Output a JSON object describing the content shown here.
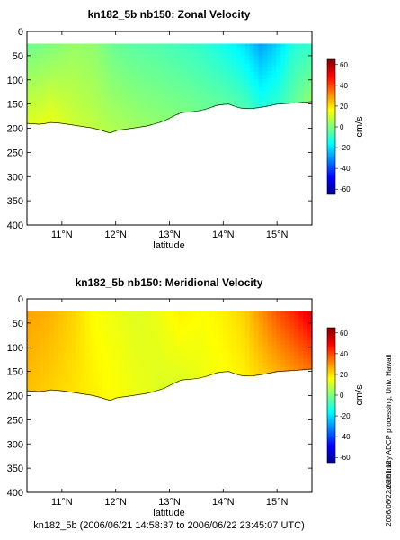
{
  "figure": {
    "side_note": "preliminary ADCP processing,  Univ. Hawaii",
    "timestamp": "2006/06/22 23:51:12",
    "footer": "kn182_5b (2006/06/21 14:58:37 to 2006/06/22 23:45:07 UTC)"
  },
  "chart_data": [
    {
      "type": "heatmap",
      "title": "kn182_5b nb150: Zonal Velocity",
      "xlabel": "latitude",
      "ylabel": "",
      "xlim": [
        10.35,
        15.65
      ],
      "ylim": [
        400,
        0
      ],
      "x_ticks": [
        11,
        12,
        13,
        14,
        15
      ],
      "x_tick_labels": [
        "11°N",
        "12°N",
        "13°N",
        "14°N",
        "15°N"
      ],
      "y_ticks": [
        0,
        50,
        100,
        150,
        200,
        250,
        300,
        350,
        400
      ],
      "colorbar": {
        "label": "cm/s",
        "range": [
          -65,
          65
        ],
        "ticks": [
          60,
          40,
          20,
          0,
          -20,
          -40,
          -60
        ],
        "colormap": "jet"
      },
      "data_top_depth": 25,
      "bottom_depth": {
        "latitude": [
          10.35,
          10.6,
          10.8,
          11.0,
          11.3,
          11.6,
          11.9,
          12.0,
          12.3,
          12.6,
          12.9,
          13.2,
          13.5,
          13.7,
          13.9,
          14.1,
          14.3,
          14.5,
          14.8,
          15.0,
          15.3,
          15.65
        ],
        "depth": [
          190,
          192,
          188,
          190,
          195,
          200,
          210,
          205,
          200,
          195,
          185,
          168,
          165,
          160,
          152,
          150,
          158,
          160,
          155,
          150,
          148,
          145
        ]
      },
      "velocity_profile": {
        "latitude": [
          10.4,
          10.8,
          11.2,
          11.6,
          12.0,
          12.4,
          12.8,
          13.2,
          13.6,
          14.0,
          14.4,
          14.7,
          15.0,
          15.3,
          15.6
        ],
        "upper_50m_cm_s": [
          -2,
          0,
          3,
          2,
          -3,
          -5,
          -6,
          -8,
          -10,
          -14,
          -20,
          -28,
          -22,
          -12,
          -10
        ],
        "lower_150m_cm_s": [
          12,
          14,
          10,
          8,
          6,
          4,
          2,
          0,
          -2,
          -4,
          -6,
          -12,
          -10,
          -4,
          2
        ]
      }
    },
    {
      "type": "heatmap",
      "title": "kn182_5b nb150: Meridional Velocity",
      "xlabel": "latitude",
      "ylabel": "",
      "xlim": [
        10.35,
        15.65
      ],
      "ylim": [
        400,
        0
      ],
      "x_ticks": [
        11,
        12,
        13,
        14,
        15
      ],
      "x_tick_labels": [
        "11°N",
        "12°N",
        "13°N",
        "14°N",
        "15°N"
      ],
      "y_ticks": [
        0,
        50,
        100,
        150,
        200,
        250,
        300,
        350,
        400
      ],
      "colorbar": {
        "label": "cm/s",
        "range": [
          -65,
          65
        ],
        "ticks": [
          60,
          40,
          20,
          0,
          -20,
          -40,
          -60
        ],
        "colormap": "jet"
      },
      "data_top_depth": 25,
      "bottom_depth": {
        "latitude": [
          10.35,
          10.6,
          10.8,
          11.0,
          11.3,
          11.6,
          11.9,
          12.0,
          12.3,
          12.6,
          12.9,
          13.2,
          13.5,
          13.7,
          13.9,
          14.1,
          14.3,
          14.5,
          14.8,
          15.0,
          15.3,
          15.65
        ],
        "depth": [
          190,
          192,
          188,
          190,
          195,
          200,
          210,
          205,
          200,
          195,
          185,
          168,
          165,
          160,
          152,
          150,
          158,
          160,
          155,
          150,
          148,
          145
        ]
      },
      "velocity_profile": {
        "latitude": [
          10.4,
          10.8,
          11.2,
          11.6,
          12.0,
          12.4,
          12.8,
          13.2,
          13.6,
          14.0,
          14.4,
          14.7,
          15.0,
          15.3,
          15.6
        ],
        "upper_50m_cm_s": [
          28,
          26,
          22,
          16,
          14,
          12,
          14,
          18,
          16,
          18,
          22,
          30,
          38,
          44,
          52
        ],
        "lower_150m_cm_s": [
          24,
          22,
          20,
          18,
          16,
          14,
          12,
          12,
          14,
          16,
          18,
          22,
          26,
          30,
          34
        ]
      }
    }
  ]
}
